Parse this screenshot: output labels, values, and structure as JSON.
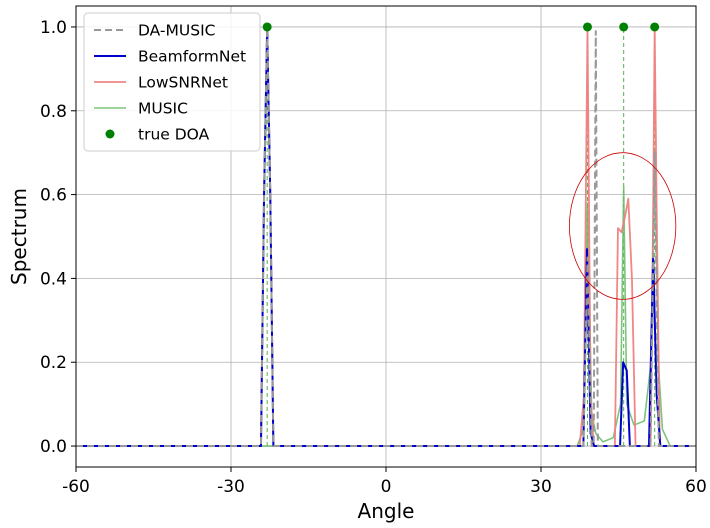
{
  "chart_data": {
    "type": "line",
    "title": "",
    "xlabel": "Angle",
    "ylabel": "Spectrum",
    "xlim": [
      -60,
      60
    ],
    "ylim": [
      -0.05,
      1.05
    ],
    "x_ticks": [
      -60,
      -30,
      0,
      30,
      60
    ],
    "x_tick_labels": [
      "-60",
      "-30",
      "0",
      "30",
      "60"
    ],
    "y_ticks": [
      0.0,
      0.2,
      0.4,
      0.6,
      0.8,
      1.0
    ],
    "y_tick_labels": [
      "0.0",
      "0.2",
      "0.4",
      "0.6",
      "0.8",
      "1.0"
    ],
    "grid": true,
    "legend_position": "top-left",
    "legend": [
      "DA-MUSIC",
      "BeamformNet",
      "LowSNRNet",
      "MUSIC",
      "true DOA"
    ],
    "series": [
      {
        "name": "MUSIC",
        "color": "#66bb66",
        "style": "solid",
        "x": [
          -60,
          -24.2,
          -23.6,
          -23.0,
          -22.4,
          -21.8,
          -60,
          37,
          38.2,
          39.0,
          39.8,
          40.6,
          42,
          44,
          45.4,
          46.0,
          46.6,
          48,
          50,
          51.3,
          52.0,
          52.7,
          53.5,
          55,
          60
        ],
        "y": [
          0,
          0,
          0.6,
          1.0,
          0.6,
          0,
          0,
          0.0,
          0.04,
          0.58,
          0.08,
          0.03,
          0.01,
          0.02,
          0.1,
          0.62,
          0.1,
          0.05,
          0.06,
          0.2,
          0.71,
          0.2,
          0.04,
          0.0,
          0
        ]
      },
      {
        "name": "LowSNRNet",
        "color": "#f08080",
        "style": "solid",
        "x": [
          -60,
          -24.2,
          -23.6,
          -23.0,
          -22.4,
          -21.8,
          37.5,
          38.3,
          39.0,
          39.6,
          40.2,
          44.3,
          44.9,
          45.6,
          46.3,
          46.9,
          47.6,
          48.3,
          51.2,
          51.7,
          52.0,
          52.4,
          53.0,
          60
        ],
        "y": [
          0,
          0,
          0.6,
          1.0,
          0.6,
          0,
          0,
          0.12,
          1.0,
          0.12,
          0,
          0,
          0.52,
          0.51,
          0.55,
          0.59,
          0.4,
          0,
          0,
          0.55,
          1.0,
          0.55,
          0,
          0
        ]
      },
      {
        "name": "BeamformNet",
        "color": "#0000cc",
        "style": "solid",
        "x": [
          -60,
          -24.2,
          -23.6,
          -23.0,
          -22.4,
          -21.8,
          38.2,
          38.9,
          39.6,
          40.3,
          45.3,
          45.9,
          46.6,
          47.2,
          50.9,
          51.7,
          52.4,
          53.1,
          60
        ],
        "y": [
          0,
          0,
          0.6,
          1.0,
          0.6,
          0,
          0,
          0.47,
          0.03,
          0,
          0,
          0.2,
          0.18,
          0,
          0,
          0.45,
          0.12,
          0,
          0
        ]
      },
      {
        "name": "DA-MUSIC",
        "color": "#999999",
        "style": "dashed",
        "x": [
          -60,
          -24.2,
          -23.6,
          -23.0,
          -22.4,
          -21.8,
          38.2,
          39.0,
          39.8,
          40.2,
          40.6,
          41.0,
          51.2,
          52.0,
          52.8,
          60
        ],
        "y": [
          0,
          0,
          0.6,
          1.0,
          0.6,
          0,
          0,
          0.45,
          0,
          0,
          0.99,
          0,
          0,
          0.7,
          0,
          0
        ]
      },
      {
        "name": "true DOA",
        "color": "#008000",
        "style": "scatter",
        "x": [
          -23.0,
          39.0,
          46.0,
          52.0
        ],
        "y": [
          1.0,
          1.0,
          1.0,
          1.0
        ]
      }
    ],
    "annotations": [
      {
        "type": "ellipse",
        "color": "#cc0000",
        "cx": 45.8,
        "cy": 0.525,
        "rx": 10.3,
        "ry": 0.175
      }
    ]
  }
}
